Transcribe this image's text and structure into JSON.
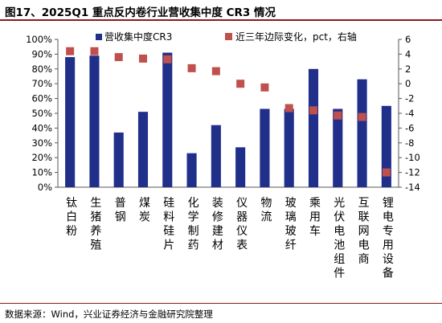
{
  "title": "图17、2025Q1 重点反内卷行业营收集中度 CR3 情况",
  "source": "数据来源：Wind，兴业证券经济与金融研究院整理",
  "chart_data": {
    "type": "bar",
    "categories": [
      "钛白粉",
      "生猪养殖",
      "普钢",
      "煤炭",
      "硅料硅片",
      "化学制药",
      "装修建材",
      "仪器仪表",
      "物流",
      "玻璃玻纤",
      "乘用车",
      "光伏电池组件",
      "互联网电商",
      "锂电专用设备"
    ],
    "series": [
      {
        "name": "营收集中度CR3",
        "type": "bar",
        "axis": "left",
        "color": "#1f2f8a",
        "values": [
          88,
          89,
          37,
          51,
          91,
          23,
          42,
          27,
          53,
          53,
          80,
          53,
          73,
          55
        ]
      },
      {
        "name": "近三年边际变化，pct，右轴",
        "type": "scatter",
        "axis": "right",
        "color": "#c0504d",
        "values": [
          4.4,
          4.4,
          3.6,
          3.4,
          3.3,
          2.1,
          1.7,
          0.0,
          -0.5,
          -3.3,
          -3.6,
          -4.3,
          -4.5,
          -12.0
        ]
      }
    ],
    "y_left": {
      "min": 0,
      "max": 100,
      "step": 10,
      "unit": "%",
      "ticks": [
        "0%",
        "10%",
        "20%",
        "30%",
        "40%",
        "50%",
        "60%",
        "70%",
        "80%",
        "90%",
        "100%"
      ]
    },
    "y_right": {
      "min": -14,
      "max": 6,
      "step": 2,
      "ticks": [
        "-14",
        "-12",
        "-10",
        "-8",
        "-6",
        "-4",
        "-2",
        "0",
        "2",
        "4",
        "6"
      ]
    },
    "legend_position": "top",
    "grid": false
  }
}
